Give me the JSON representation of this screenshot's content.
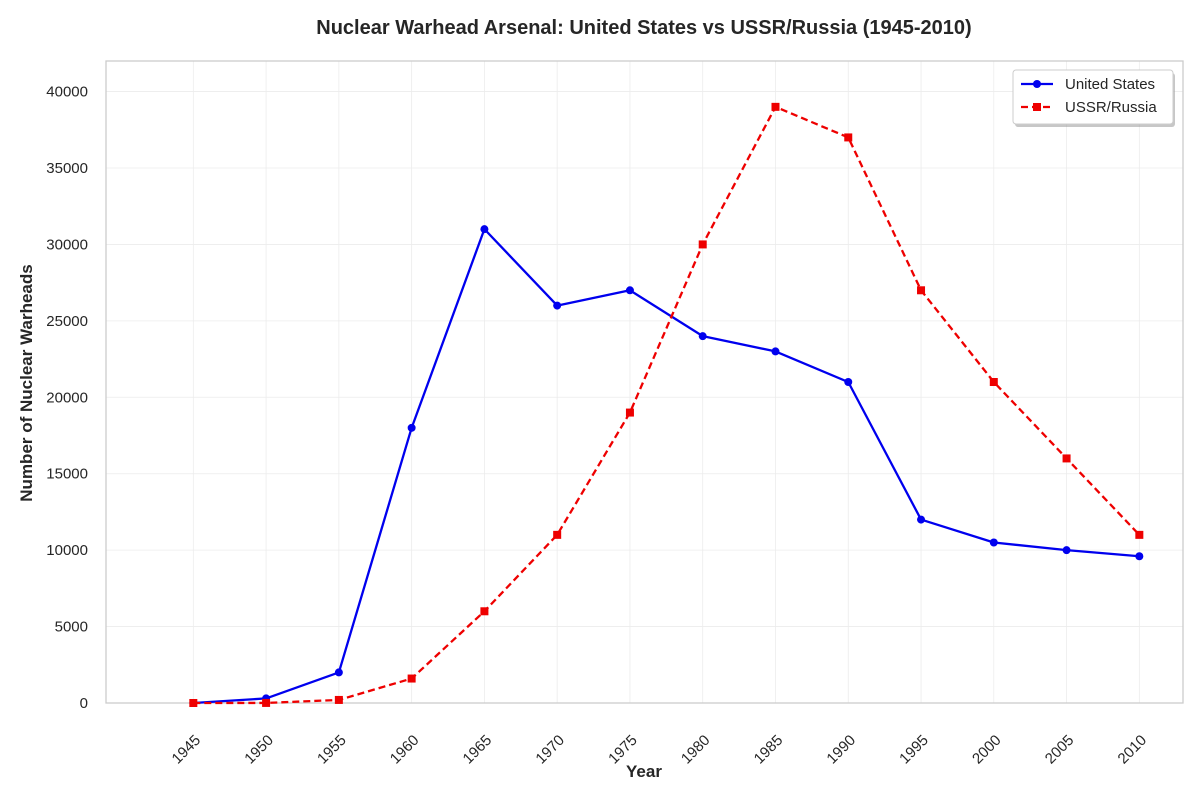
{
  "chart_data": {
    "type": "line",
    "title": "Nuclear Warhead Arsenal: United States vs USSR/Russia (1945-2010)",
    "xlabel": "Year",
    "ylabel": "Number of Nuclear Warheads",
    "x": [
      1945,
      1950,
      1955,
      1960,
      1965,
      1970,
      1975,
      1980,
      1985,
      1990,
      1995,
      2000,
      2005,
      2010
    ],
    "x_tick_labels": [
      "1945",
      "1950",
      "1955",
      "1960",
      "1965",
      "1970",
      "1975",
      "1980",
      "1985",
      "1990",
      "1995",
      "2000",
      "2005",
      "2010"
    ],
    "xlim": [
      1939,
      2013
    ],
    "ylim": [
      0,
      42000
    ],
    "y_ticks": [
      0,
      5000,
      10000,
      15000,
      20000,
      25000,
      30000,
      35000,
      40000
    ],
    "y_tick_labels": [
      "0",
      "5000",
      "10000",
      "15000",
      "20000",
      "25000",
      "30000",
      "35000",
      "40000"
    ],
    "grid": true,
    "legend_position": "top-right",
    "series": [
      {
        "name": "United States",
        "color": "#0000ee",
        "line_style": "solid",
        "marker": "circle",
        "values": [
          2,
          300,
          2000,
          18000,
          31000,
          26000,
          27000,
          24000,
          23000,
          21000,
          12000,
          10500,
          10000,
          9600
        ]
      },
      {
        "name": "USSR/Russia",
        "color": "#ee0000",
        "line_style": "dashed",
        "marker": "square",
        "values": [
          0,
          5,
          200,
          1600,
          6000,
          11000,
          19000,
          30000,
          39000,
          37000,
          27000,
          21000,
          16000,
          11000
        ]
      }
    ]
  }
}
